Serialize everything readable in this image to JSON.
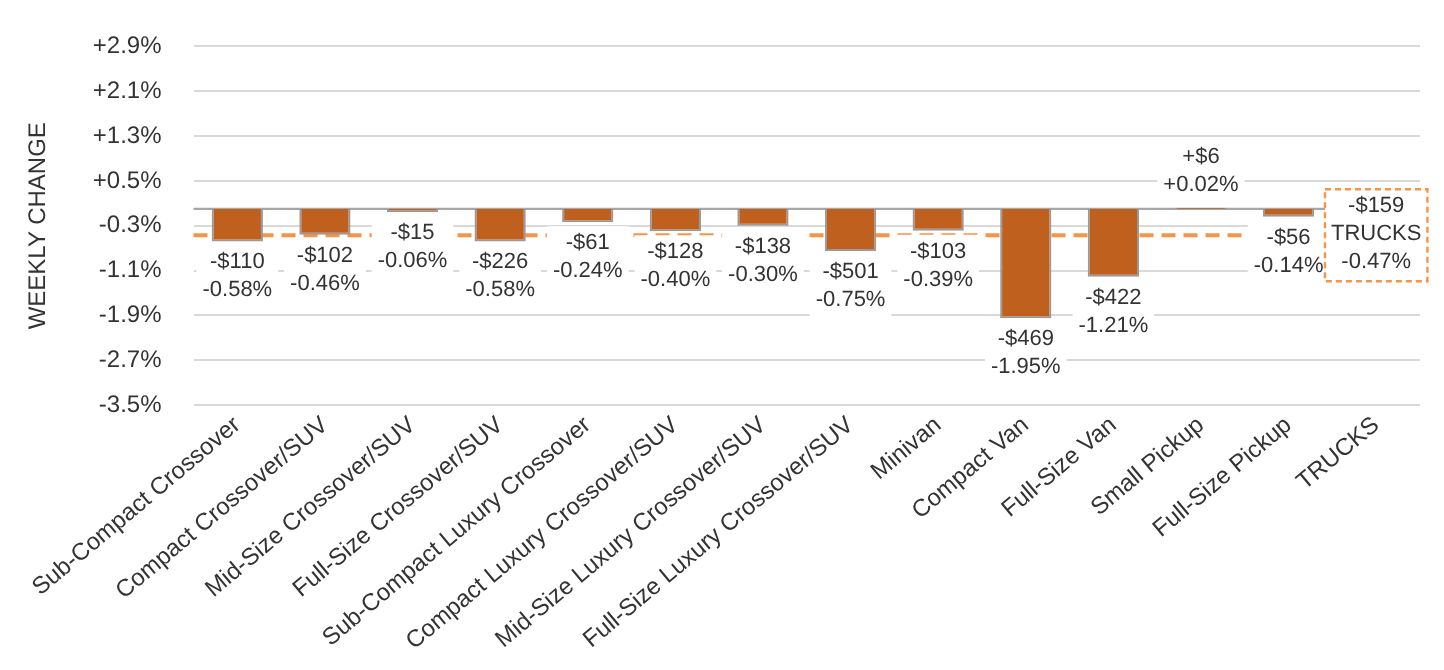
{
  "chart_data": {
    "type": "bar",
    "ylabel": "WEEKLY CHANGE",
    "categories": [
      "Sub-Compact Crossover",
      "Compact Crossover/SUV",
      "Mid-Size Crossover/SUV",
      "Full-Size Crossover/SUV",
      "Sub-Compact Luxury Crossover",
      "Compact Luxury Crossover/SUV",
      "Mid-Size Luxury Crossover/SUV",
      "Full-Size Luxury Crossover/SUV",
      "Minivan",
      "Compact Van",
      "Full-Size Van",
      "Small Pickup",
      "Full-Size Pickup",
      "TRUCKS"
    ],
    "series": [
      {
        "color": "#c0601f",
        "values": [
          -0.58,
          -0.46,
          -0.06,
          -0.58,
          -0.24,
          -0.4,
          -0.3,
          -0.75,
          -0.39,
          -1.95,
          -1.21,
          0.02,
          -0.14,
          null
        ],
        "value_labels": [
          "-$110\n-0.58%",
          "-$102\n-0.46%",
          "-$15\n-0.06%",
          "-$226\n-0.58%",
          "-$61\n-0.24%",
          "-$128\n-0.40%",
          "-$138\n-0.30%",
          "-$501\n-0.75%",
          "-$103\n-0.39%",
          "-$469\n-1.95%",
          "-$422\n-1.21%",
          "+$6\n+0.02%",
          "-$56\n-0.14%",
          null
        ]
      }
    ],
    "ref_lines": [
      {
        "axis": "y",
        "value": -0.47,
        "label": "-$159\nTRUCKS\n-0.47%",
        "color": "#f4954a",
        "line_style": "dashed"
      }
    ],
    "ylim": [
      -3.5,
      2.9
    ],
    "yticks": [
      {
        "value": 2.9,
        "label": "+2.9%"
      },
      {
        "value": 2.1,
        "label": "+2.1%"
      },
      {
        "value": 1.3,
        "label": "+1.3%"
      },
      {
        "value": 0.5,
        "label": "+0.5%"
      },
      {
        "value": -0.3,
        "label": "-0.3%"
      },
      {
        "value": -1.1,
        "label": "-1.1%"
      },
      {
        "value": -1.9,
        "label": "-1.9%"
      },
      {
        "value": -2.7,
        "label": "-2.7%"
      },
      {
        "value": -3.5,
        "label": "-3.5%"
      }
    ],
    "grid": "y",
    "legend": false
  }
}
